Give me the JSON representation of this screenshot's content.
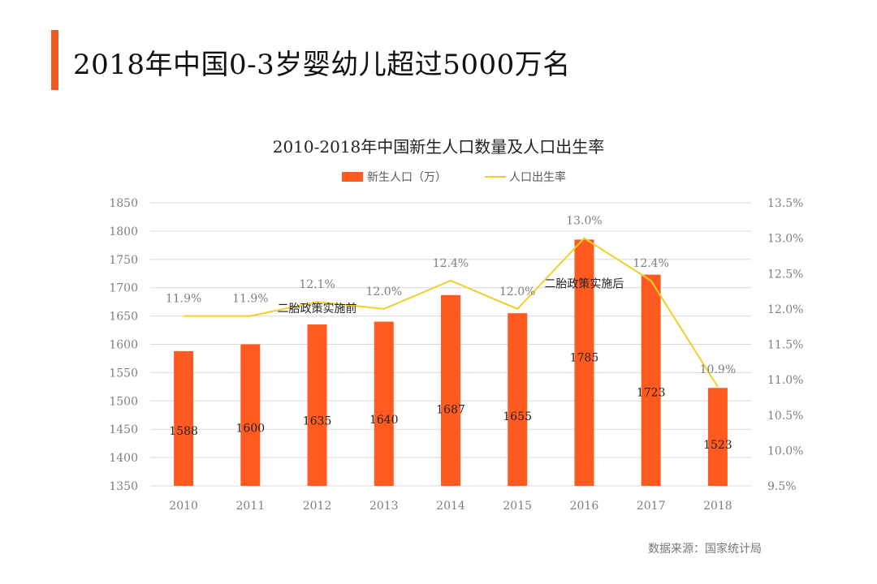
{
  "page_title": "2018年中国0-3岁婴幼儿超过5000万名",
  "source_note": "数据来源：国家统计局",
  "colors": {
    "accent": "#F15A24",
    "bar": "#FF5A1F",
    "line": "#F0D028",
    "grid": "#D9D9D9",
    "axis_text": "#7F7F7F",
    "label_text": "#595959"
  },
  "chart_data": {
    "type": "bar",
    "title": "2010-2018年中国新生人口数量及人口出生率",
    "categories": [
      "2010",
      "2011",
      "2012",
      "2013",
      "2014",
      "2015",
      "2016",
      "2017",
      "2018"
    ],
    "series": [
      {
        "name": "新生人口（万）",
        "type": "bar",
        "axis": "left",
        "values": [
          1588,
          1600,
          1635,
          1640,
          1687,
          1655,
          1785,
          1723,
          1523
        ],
        "labels": [
          "1588",
          "1600",
          "1635",
          "1640",
          "1687",
          "1655",
          "1785",
          "1723",
          "1523"
        ]
      },
      {
        "name": "人口出生率",
        "type": "line",
        "axis": "right",
        "values": [
          11.9,
          11.9,
          12.1,
          12.0,
          12.4,
          12.0,
          13.0,
          12.4,
          10.9
        ],
        "labels": [
          "11.9%",
          "11.9%",
          "12.1%",
          "12.0%",
          "12.4%",
          "12.0%",
          "13.0%",
          "12.4%",
          "10.9%"
        ]
      }
    ],
    "y_left": {
      "min": 1350,
      "max": 1850,
      "ticks": [
        "1350",
        "1400",
        "1450",
        "1500",
        "1550",
        "1600",
        "1650",
        "1700",
        "1750",
        "1800",
        "1850"
      ]
    },
    "y_right": {
      "min": 9.5,
      "max": 13.5,
      "ticks": [
        "9.5%",
        "10.0%",
        "10.5%",
        "11.0%",
        "11.5%",
        "12.0%",
        "12.5%",
        "13.0%",
        "13.5%"
      ]
    },
    "grid": true,
    "legend_position": "top",
    "annotations": [
      {
        "text": "二胎政策实施前",
        "category": "2012",
        "value": 11.95
      },
      {
        "text": "二胎政策实施后",
        "category": "2016",
        "value": 12.3
      }
    ]
  }
}
